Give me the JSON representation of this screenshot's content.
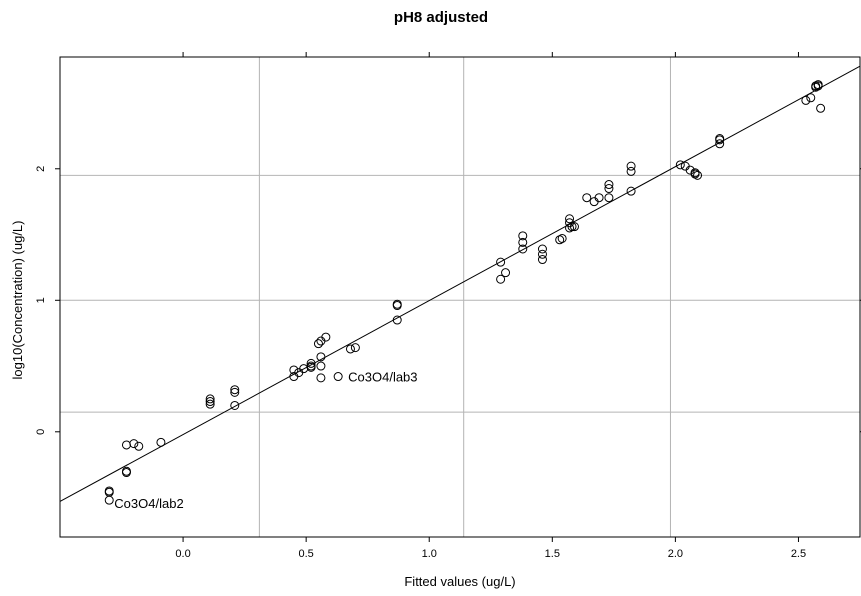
{
  "chart_data": {
    "type": "scatter",
    "title": "pH8 adjusted",
    "xlabel": "Fitted values (ug/L)",
    "ylabel": "log10(Concentration) (ug/L)",
    "xlim": [
      -0.5,
      2.75
    ],
    "ylim": [
      -0.8,
      2.85
    ],
    "x_ticks": [
      0.0,
      0.5,
      1.0,
      1.5,
      2.0,
      2.5
    ],
    "x_tick_labels": [
      "0.0",
      "0.5",
      "1.0",
      "1.5",
      "2.0",
      "2.5"
    ],
    "y_ticks": [
      0,
      1,
      2
    ],
    "y_tick_labels": [
      "0",
      "1",
      "2"
    ],
    "x_grid": [
      0.31,
      1.14,
      1.98
    ],
    "y_grid": [
      0.15,
      1.0,
      1.95
    ],
    "grid": true,
    "fit_line": {
      "x": [
        -0.5,
        2.75
      ],
      "y": [
        -0.53,
        2.78
      ]
    },
    "annotations": [
      {
        "text": "Co3O4/lab2",
        "x": -0.32,
        "y": -0.54
      },
      {
        "text": "Co3O4/lab3",
        "x": 0.63,
        "y": 0.42
      }
    ],
    "points": [
      [
        -0.3,
        -0.45
      ],
      [
        -0.3,
        -0.46
      ],
      [
        -0.3,
        -0.52
      ],
      [
        -0.23,
        -0.1
      ],
      [
        -0.2,
        -0.09
      ],
      [
        -0.18,
        -0.11
      ],
      [
        -0.09,
        -0.08
      ],
      [
        -0.23,
        -0.3
      ],
      [
        -0.23,
        -0.31
      ],
      [
        0.11,
        0.25
      ],
      [
        0.11,
        0.23
      ],
      [
        0.11,
        0.21
      ],
      [
        0.21,
        0.32
      ],
      [
        0.21,
        0.3
      ],
      [
        0.21,
        0.2
      ],
      [
        0.45,
        0.47
      ],
      [
        0.45,
        0.42
      ],
      [
        0.47,
        0.45
      ],
      [
        0.49,
        0.48
      ],
      [
        0.52,
        0.5
      ],
      [
        0.52,
        0.49
      ],
      [
        0.52,
        0.52
      ],
      [
        0.55,
        0.67
      ],
      [
        0.56,
        0.69
      ],
      [
        0.58,
        0.72
      ],
      [
        0.56,
        0.57
      ],
      [
        0.56,
        0.5
      ],
      [
        0.56,
        0.41
      ],
      [
        0.63,
        0.42
      ],
      [
        0.68,
        0.63
      ],
      [
        0.7,
        0.64
      ],
      [
        0.87,
        0.97
      ],
      [
        0.87,
        0.96
      ],
      [
        0.87,
        0.85
      ],
      [
        1.29,
        1.29
      ],
      [
        1.29,
        1.16
      ],
      [
        1.31,
        1.21
      ],
      [
        1.38,
        1.49
      ],
      [
        1.38,
        1.44
      ],
      [
        1.38,
        1.39
      ],
      [
        1.46,
        1.39
      ],
      [
        1.46,
        1.35
      ],
      [
        1.46,
        1.31
      ],
      [
        1.53,
        1.46
      ],
      [
        1.54,
        1.47
      ],
      [
        1.57,
        1.62
      ],
      [
        1.57,
        1.59
      ],
      [
        1.58,
        1.56
      ],
      [
        1.59,
        1.56
      ],
      [
        1.57,
        1.55
      ],
      [
        1.64,
        1.78
      ],
      [
        1.67,
        1.75
      ],
      [
        1.69,
        1.78
      ],
      [
        1.73,
        1.88
      ],
      [
        1.73,
        1.85
      ],
      [
        1.73,
        1.78
      ],
      [
        1.82,
        2.02
      ],
      [
        1.82,
        1.98
      ],
      [
        1.82,
        1.83
      ],
      [
        2.02,
        2.03
      ],
      [
        2.04,
        2.02
      ],
      [
        2.06,
        1.99
      ],
      [
        2.08,
        1.96
      ],
      [
        2.09,
        1.95
      ],
      [
        2.08,
        1.97
      ],
      [
        2.18,
        2.23
      ],
      [
        2.18,
        2.22
      ],
      [
        2.18,
        2.19
      ],
      [
        2.53,
        2.52
      ],
      [
        2.55,
        2.54
      ],
      [
        2.57,
        2.63
      ],
      [
        2.58,
        2.63
      ],
      [
        2.58,
        2.64
      ],
      [
        2.57,
        2.62
      ],
      [
        2.59,
        2.46
      ]
    ]
  }
}
